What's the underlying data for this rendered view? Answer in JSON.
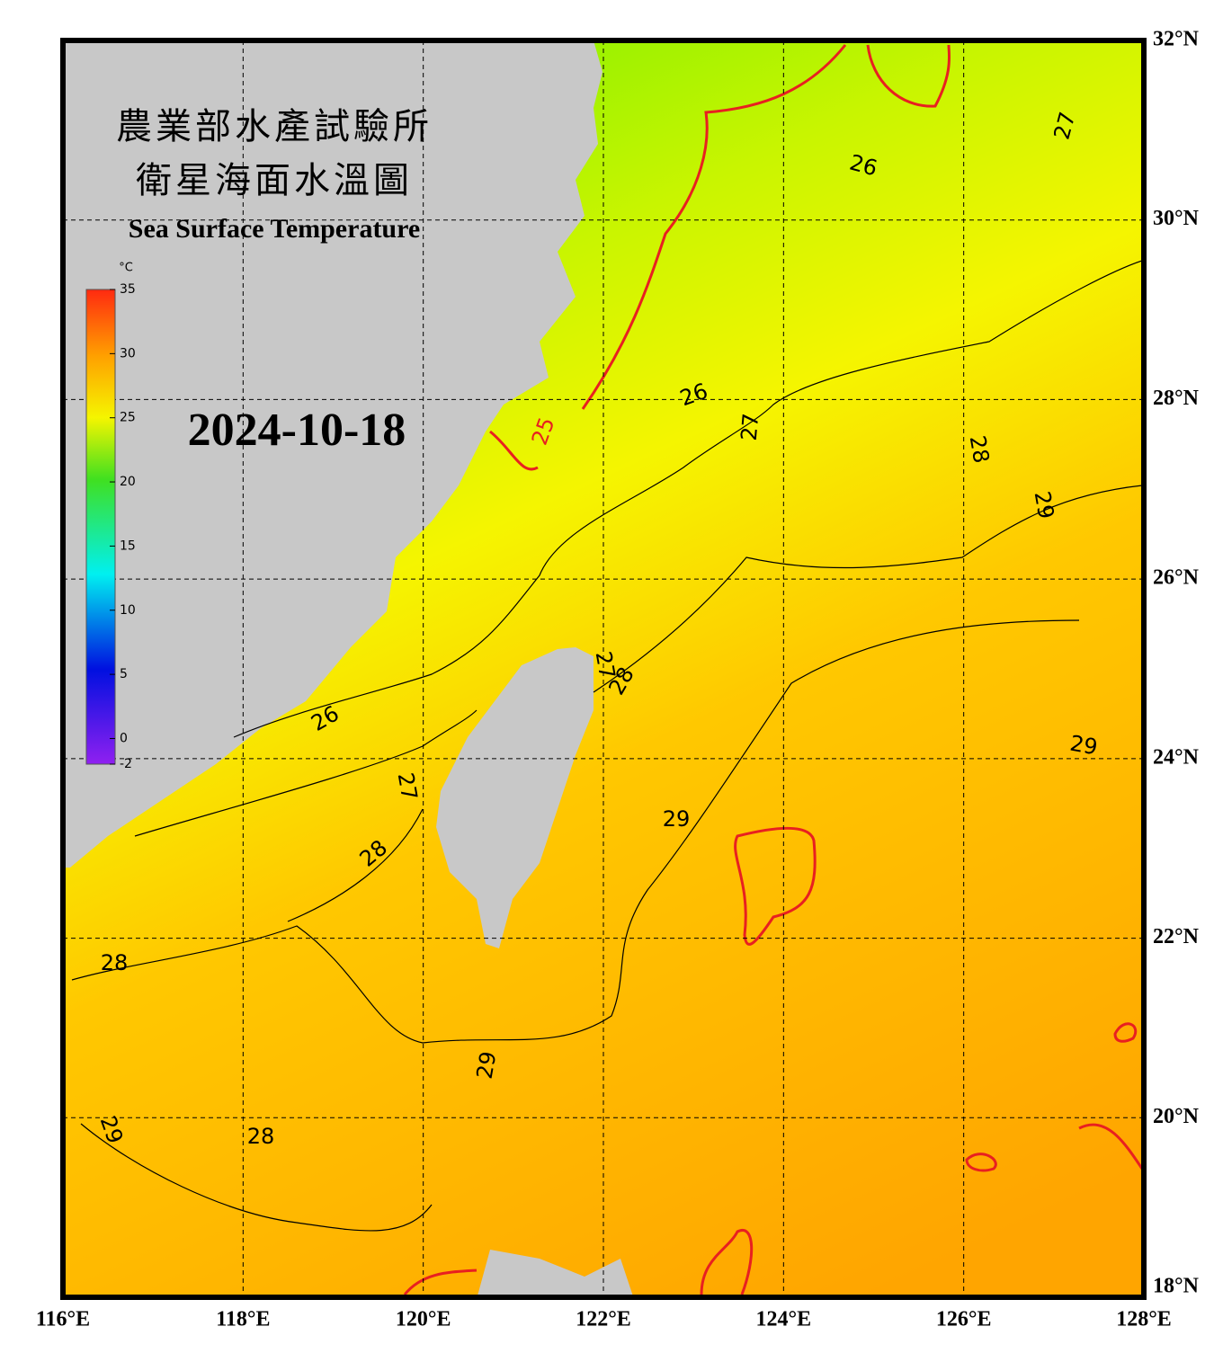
{
  "header": {
    "title_zh_1": "農業部水產試驗所",
    "title_zh_2": "衛星海面水溫圖",
    "title_en": "Sea Surface Temperature",
    "date": "2024-10-18"
  },
  "colorbar": {
    "unit": "°C",
    "range": [
      -2,
      35
    ],
    "ticks": [
      35,
      30,
      25,
      20,
      15,
      10,
      5,
      0,
      -2
    ]
  },
  "map": {
    "lon_range": [
      116,
      128
    ],
    "lat_range": [
      18,
      32
    ],
    "lon_ticks": [
      {
        "value": 116,
        "label": "116°E"
      },
      {
        "value": 118,
        "label": "118°E"
      },
      {
        "value": 120,
        "label": "120°E"
      },
      {
        "value": 122,
        "label": "122°E"
      },
      {
        "value": 124,
        "label": "124°E"
      },
      {
        "value": 126,
        "label": "126°E"
      },
      {
        "value": 128,
        "label": "128°E"
      }
    ],
    "lat_ticks": [
      {
        "value": 32,
        "label": "32°N"
      },
      {
        "value": 30,
        "label": "30°N"
      },
      {
        "value": 28,
        "label": "28°N"
      },
      {
        "value": 26,
        "label": "26°N"
      },
      {
        "value": 24,
        "label": "24°N"
      },
      {
        "value": 22,
        "label": "22°N"
      },
      {
        "value": 20,
        "label": "20°N"
      },
      {
        "value": 18,
        "label": "18°N"
      }
    ],
    "contour_labels": [
      "26",
      "27",
      "26",
      "27",
      "25",
      "28",
      "29",
      "27",
      "28",
      "26",
      "27",
      "29",
      "29",
      "28",
      "28",
      "29",
      "29",
      "28"
    ]
  }
}
